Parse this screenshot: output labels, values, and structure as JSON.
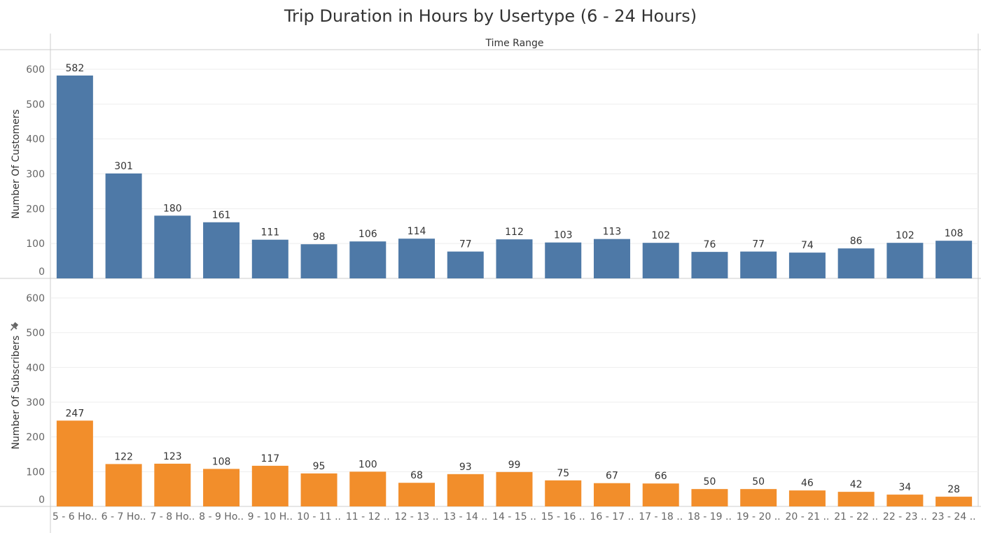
{
  "title": "Trip Duration in Hours by Usertype (6 - 24 Hours)",
  "header_label": "Time Range",
  "colors": {
    "customers": "#4e79a7",
    "subscribers": "#f28e2b",
    "grid": "#eeeeee",
    "axis": "#cccccc"
  },
  "pin_icon": "pin-icon",
  "chart_data": {
    "type": "bar",
    "categories": [
      "5 - 6 Ho..",
      "6 - 7 Ho..",
      "7 - 8 Ho..",
      "8 - 9 Ho..",
      "9 - 10 H..",
      "10 - 11 ..",
      "11 - 12 ..",
      "12 - 13 ..",
      "13 - 14 ..",
      "14 - 15 ..",
      "15 - 16 ..",
      "16 - 17 ..",
      "17 - 18 ..",
      "18 - 19 ..",
      "19 - 20 ..",
      "20 - 21 ..",
      "21 - 22 ..",
      "22 - 23 ..",
      "23 - 24 .."
    ],
    "panels": [
      {
        "ylabel": "Number Of Customers",
        "values": [
          582,
          301,
          180,
          161,
          111,
          98,
          106,
          114,
          77,
          112,
          103,
          113,
          102,
          76,
          77,
          74,
          86,
          102,
          108
        ],
        "ylim": [
          0,
          600
        ],
        "yticks": [
          0,
          100,
          200,
          300,
          400,
          500,
          600
        ]
      },
      {
        "ylabel": "Number Of Subscribers",
        "values": [
          247,
          122,
          123,
          108,
          117,
          95,
          100,
          68,
          93,
          99,
          75,
          67,
          66,
          50,
          50,
          46,
          42,
          34,
          28
        ],
        "ylim": [
          0,
          600
        ],
        "yticks": [
          0,
          100,
          200,
          300,
          400,
          500,
          600
        ]
      }
    ]
  }
}
